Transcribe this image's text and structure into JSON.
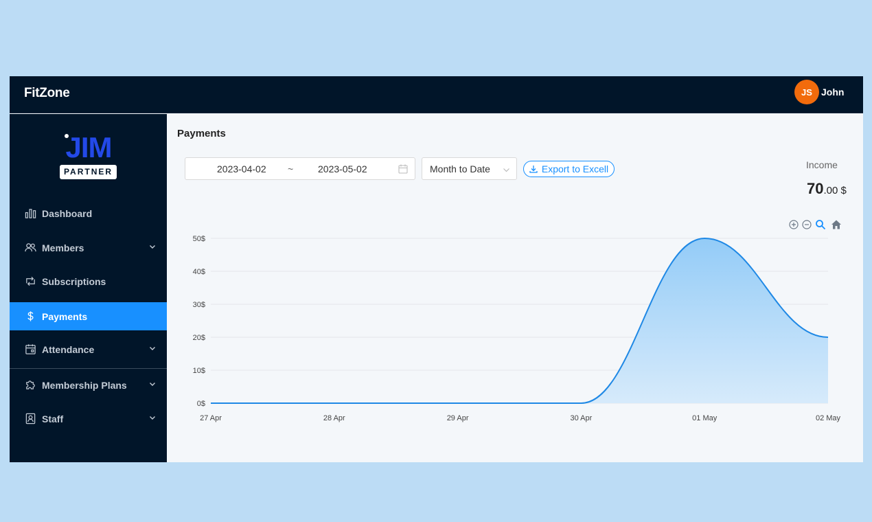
{
  "app": {
    "name": "FitZone"
  },
  "user": {
    "initials": "JS",
    "name": "John"
  },
  "logo": {
    "top": "JIM",
    "bottom": "PARTNER"
  },
  "sidebar": {
    "items": [
      {
        "label": "Dashboard",
        "icon": "bar-chart-icon",
        "active": false,
        "has_submenu": false
      },
      {
        "label": "Members",
        "icon": "users-icon",
        "active": false,
        "has_submenu": true
      },
      {
        "label": "Subscriptions",
        "icon": "refresh-icon",
        "active": false,
        "has_submenu": false
      },
      {
        "label": "Payments",
        "icon": "dollar-icon",
        "active": true,
        "has_submenu": false
      },
      {
        "label": "Attendance",
        "icon": "calendar-icon",
        "active": false,
        "has_submenu": true
      },
      {
        "label": "Membership Plans",
        "icon": "puzzle-icon",
        "active": false,
        "has_submenu": true
      },
      {
        "label": "Staff",
        "icon": "id-card-icon",
        "active": false,
        "has_submenu": true
      }
    ]
  },
  "page": {
    "title": "Payments"
  },
  "filters": {
    "date_start": "2023-04-02",
    "date_separator": "~",
    "date_end": "2023-05-02",
    "preset": "Month to Date",
    "export_label": "Export to Excell"
  },
  "income": {
    "label": "Income",
    "integer": "70",
    "fraction": ".00 $"
  },
  "toolbar": {
    "icons": [
      "zoom-in-icon",
      "zoom-out-icon",
      "selection-zoom-icon",
      "reset-home-icon"
    ]
  },
  "colors": {
    "accent": "#1890ff",
    "sidebar_bg": "#011529",
    "avatar": "#f26b0c",
    "series": "#1e88e5"
  },
  "chart_data": {
    "type": "area",
    "x": [
      "27 Apr",
      "28 Apr",
      "29 Apr",
      "30 Apr",
      "01 May",
      "02 May"
    ],
    "series": [
      {
        "values": [
          0,
          0,
          0,
          0,
          50,
          20
        ]
      }
    ],
    "y_ticks": [
      "0$",
      "10$",
      "20$",
      "30$",
      "40$",
      "50$"
    ],
    "ylim": [
      0,
      50
    ],
    "grid": true,
    "smooth": true
  }
}
